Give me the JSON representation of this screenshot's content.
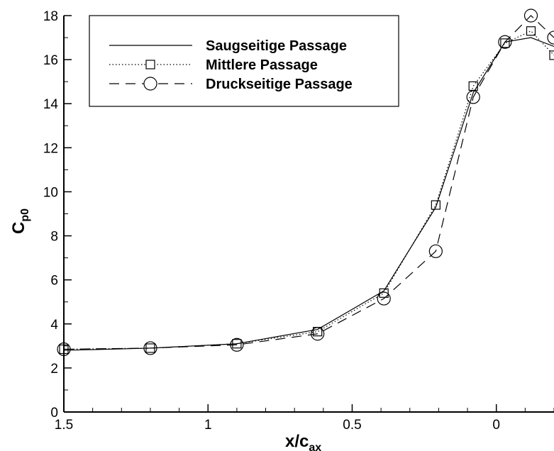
{
  "chart_data": {
    "type": "line",
    "title": "",
    "xlabel": {
      "main": "x/c",
      "sub": "ax"
    },
    "ylabel": {
      "main": "C",
      "sub": "p0"
    },
    "x_reversed": true,
    "xlim": [
      1.5,
      -0.2
    ],
    "ylim": [
      0,
      18
    ],
    "xticks": [
      {
        "value": 1.5,
        "label": "1.5"
      },
      {
        "value": 1.0,
        "label": "1"
      },
      {
        "value": 0.5,
        "label": "0.5"
      },
      {
        "value": 0.0,
        "label": "0"
      }
    ],
    "yticks": [
      {
        "value": 0,
        "label": "0"
      },
      {
        "value": 2,
        "label": "2"
      },
      {
        "value": 4,
        "label": "4"
      },
      {
        "value": 6,
        "label": "6"
      },
      {
        "value": 8,
        "label": "8"
      },
      {
        "value": 10,
        "label": "10"
      },
      {
        "value": 12,
        "label": "12"
      },
      {
        "value": 14,
        "label": "14"
      },
      {
        "value": 16,
        "label": "16"
      },
      {
        "value": 18,
        "label": "18"
      }
    ],
    "grid": false,
    "legend_position": "top-left",
    "series": [
      {
        "name": "Saugseitige Passage",
        "line_style": "solid",
        "marker": "none",
        "color": "#000000",
        "x": [
          1.5,
          1.2,
          0.9,
          0.62,
          0.39,
          0.21,
          0.08,
          -0.03,
          -0.12,
          -0.2
        ],
        "y": [
          2.8,
          2.9,
          3.1,
          3.75,
          5.5,
          9.3,
          14.5,
          16.8,
          17.0,
          16.6
        ]
      },
      {
        "name": "Mittlere Passage",
        "line_style": "dotted",
        "marker": "square",
        "color": "#000000",
        "x": [
          1.5,
          1.2,
          0.9,
          0.62,
          0.39,
          0.21,
          0.08,
          -0.03,
          -0.12,
          -0.2
        ],
        "y": [
          2.85,
          2.9,
          3.1,
          3.65,
          5.4,
          9.4,
          14.8,
          16.75,
          17.3,
          16.2
        ]
      },
      {
        "name": "Druckseitige Passage",
        "line_style": "dashed",
        "marker": "circle",
        "color": "#000000",
        "x": [
          1.5,
          1.2,
          0.9,
          0.62,
          0.39,
          0.21,
          0.08,
          -0.03,
          -0.12,
          -0.2
        ],
        "y": [
          2.85,
          2.9,
          3.05,
          3.55,
          5.15,
          7.3,
          14.3,
          16.8,
          18.0,
          17.0
        ]
      }
    ]
  }
}
